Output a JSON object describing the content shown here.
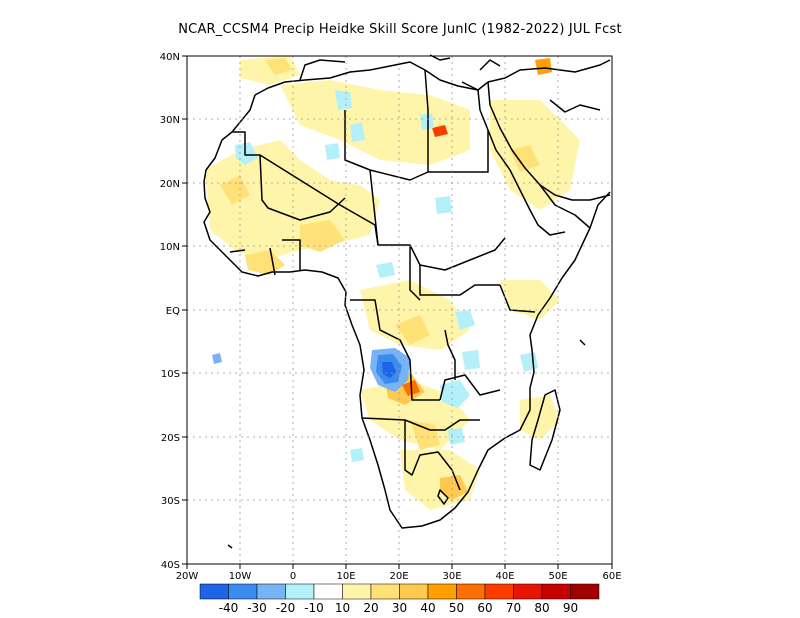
{
  "title": "NCAR_CCSM4 Precip Heidke Skill Score JunIC (1982-2022) JUL Fcst",
  "axes": {
    "lon_ticks": [
      "20W",
      "10W",
      "0",
      "10E",
      "20E",
      "30E",
      "40E",
      "50E",
      "60E"
    ],
    "lat_ticks": [
      "40N",
      "30N",
      "20N",
      "10N",
      "EQ",
      "10S",
      "20S",
      "30S",
      "40S"
    ]
  },
  "colorbar": {
    "labels": [
      "-40",
      "-30",
      "-20",
      "-10",
      "10",
      "20",
      "30",
      "40",
      "50",
      "60",
      "70",
      "80",
      "90"
    ],
    "colors": [
      "#1e64e6",
      "#3c8cf0",
      "#78b4f5",
      "#b4f0fa",
      "#ffffff",
      "#fff5aa",
      "#ffe178",
      "#ffc850",
      "#ffa000",
      "#ff6e00",
      "#ff3c00",
      "#e61400",
      "#c80000",
      "#a00000"
    ]
  },
  "colors": {
    "land_outline": "#000000",
    "grid": "#999999"
  }
}
